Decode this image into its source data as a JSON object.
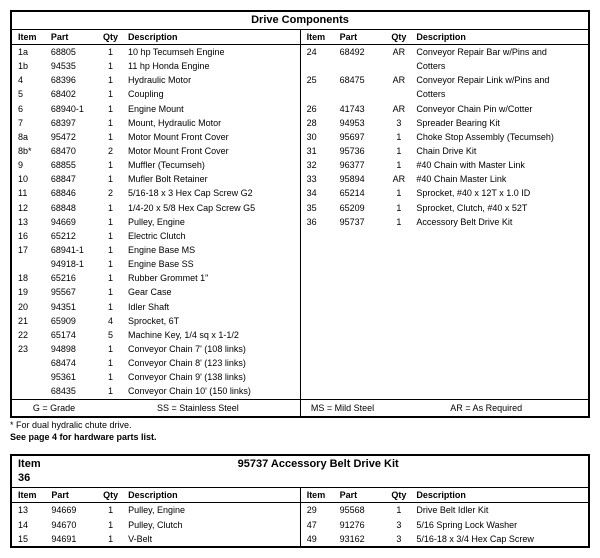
{
  "table1": {
    "title": "Drive Components",
    "headers": [
      "Item",
      "Part",
      "Qty",
      "Description",
      "Item",
      "Part",
      "Qty",
      "Description"
    ],
    "rows": [
      [
        "1a",
        "68805",
        "1",
        "10 hp Tecumseh Engine",
        "24",
        "68492",
        "AR",
        "Conveyor Repair Bar w/Pins and"
      ],
      [
        "1b",
        "94535",
        "1",
        "11 hp Honda Engine",
        "",
        "",
        "",
        "Cotters"
      ],
      [
        "4",
        "68396",
        "1",
        "Hydraulic Motor",
        "25",
        "68475",
        "AR",
        "Conveyor Repair Link w/Pins and"
      ],
      [
        "5",
        "68402",
        "1",
        "Coupling",
        "",
        "",
        "",
        "Cotters"
      ],
      [
        "6",
        "68940-1",
        "1",
        "Engine Mount",
        "26",
        "41743",
        "AR",
        "Conveyor Chain Pin w/Cotter"
      ],
      [
        "7",
        "68397",
        "1",
        "Mount, Hydraulic Motor",
        "28",
        "94953",
        "3",
        "Spreader Bearing Kit"
      ],
      [
        "8a",
        "95472",
        "1",
        "Motor Mount Front Cover",
        "30",
        "95697",
        "1",
        "Choke Stop Assembly (Tecumseh)"
      ],
      [
        "8b*",
        "68470",
        "2",
        "Motor Mount Front Cover",
        "31",
        "95736",
        "1",
        "Chain Drive Kit"
      ],
      [
        "9",
        "68855",
        "1",
        "Muffler (Tecumseh)",
        "32",
        "96377",
        "1",
        "#40 Chain with Master Link"
      ],
      [
        "10",
        "68847",
        "1",
        "Mufler Bolt Retainer",
        "33",
        "95894",
        "AR",
        "#40 Chain Master Link"
      ],
      [
        "11",
        "68846",
        "2",
        "5/16-18 x 3 Hex Cap Screw G2",
        "34",
        "65214",
        "1",
        "Sprocket, #40 x 12T x 1.0 ID"
      ],
      [
        "12",
        "68848",
        "1",
        "1/4-20 x 5/8 Hex Cap Screw G5",
        "35",
        "65209",
        "1",
        "Sprocket, Clutch, #40 x 52T"
      ],
      [
        "13",
        "94669",
        "1",
        "Pulley, Engine",
        "36",
        "95737",
        "1",
        "Accessory Belt Drive Kit"
      ],
      [
        "16",
        "65212",
        "1",
        "Electric Clutch",
        "",
        "",
        "",
        ""
      ],
      [
        "17",
        "68941-1",
        "1",
        "Engine Base MS",
        "",
        "",
        "",
        ""
      ],
      [
        "",
        "94918-1",
        "1",
        "Engine Base SS",
        "",
        "",
        "",
        ""
      ],
      [
        "18",
        "65216",
        "1",
        "Rubber Grommet 1\"",
        "",
        "",
        "",
        ""
      ],
      [
        "19",
        "95567",
        "1",
        "Gear Case",
        "",
        "",
        "",
        ""
      ],
      [
        "20",
        "94351",
        "1",
        "Idler Shaft",
        "",
        "",
        "",
        ""
      ],
      [
        "21",
        "65909",
        "4",
        "Sprocket, 6T",
        "",
        "",
        "",
        ""
      ],
      [
        "22",
        "65174",
        "5",
        "Machine Key, 1/4 sq x 1-1/2",
        "",
        "",
        "",
        ""
      ],
      [
        "23",
        "94898",
        "1",
        "Conveyor Chain 7' (108 links)",
        "",
        "",
        "",
        ""
      ],
      [
        "",
        "68474",
        "1",
        "Conveyor Chain 8' (123 links)",
        "",
        "",
        "",
        ""
      ],
      [
        "",
        "95361",
        "1",
        "Conveyor Chain 9' (138 links)",
        "",
        "",
        "",
        ""
      ],
      [
        "",
        "68435",
        "1",
        "Conveyor Chain 10' (150 links)",
        "",
        "",
        "",
        ""
      ]
    ],
    "legend": [
      "G = Grade",
      "SS = Stainless Steel",
      "MS = Mild Steel",
      "AR = As Required"
    ]
  },
  "footnote": "* For dual hydralic chute drive.",
  "seepage": "See page 4 for hardware parts list.",
  "table2": {
    "item_label": "Item 36",
    "title": "95737  Accessory Belt Drive Kit",
    "headers": [
      "Item",
      "Part",
      "Qty",
      "Description",
      "Item",
      "Part",
      "Qty",
      "Description"
    ],
    "rows": [
      [
        "13",
        "94669",
        "1",
        "Pulley, Engine",
        "29",
        "95568",
        "1",
        "Drive Belt Idler Kit"
      ],
      [
        "14",
        "94670",
        "1",
        "Pulley, Clutch",
        "47",
        "91276",
        "3",
        "5/16 Spring Lock Washer"
      ],
      [
        "15",
        "94691",
        "1",
        "V-Belt",
        "49",
        "93162",
        "3",
        "5/16-18 x 3/4 Hex Cap Screw"
      ]
    ]
  }
}
